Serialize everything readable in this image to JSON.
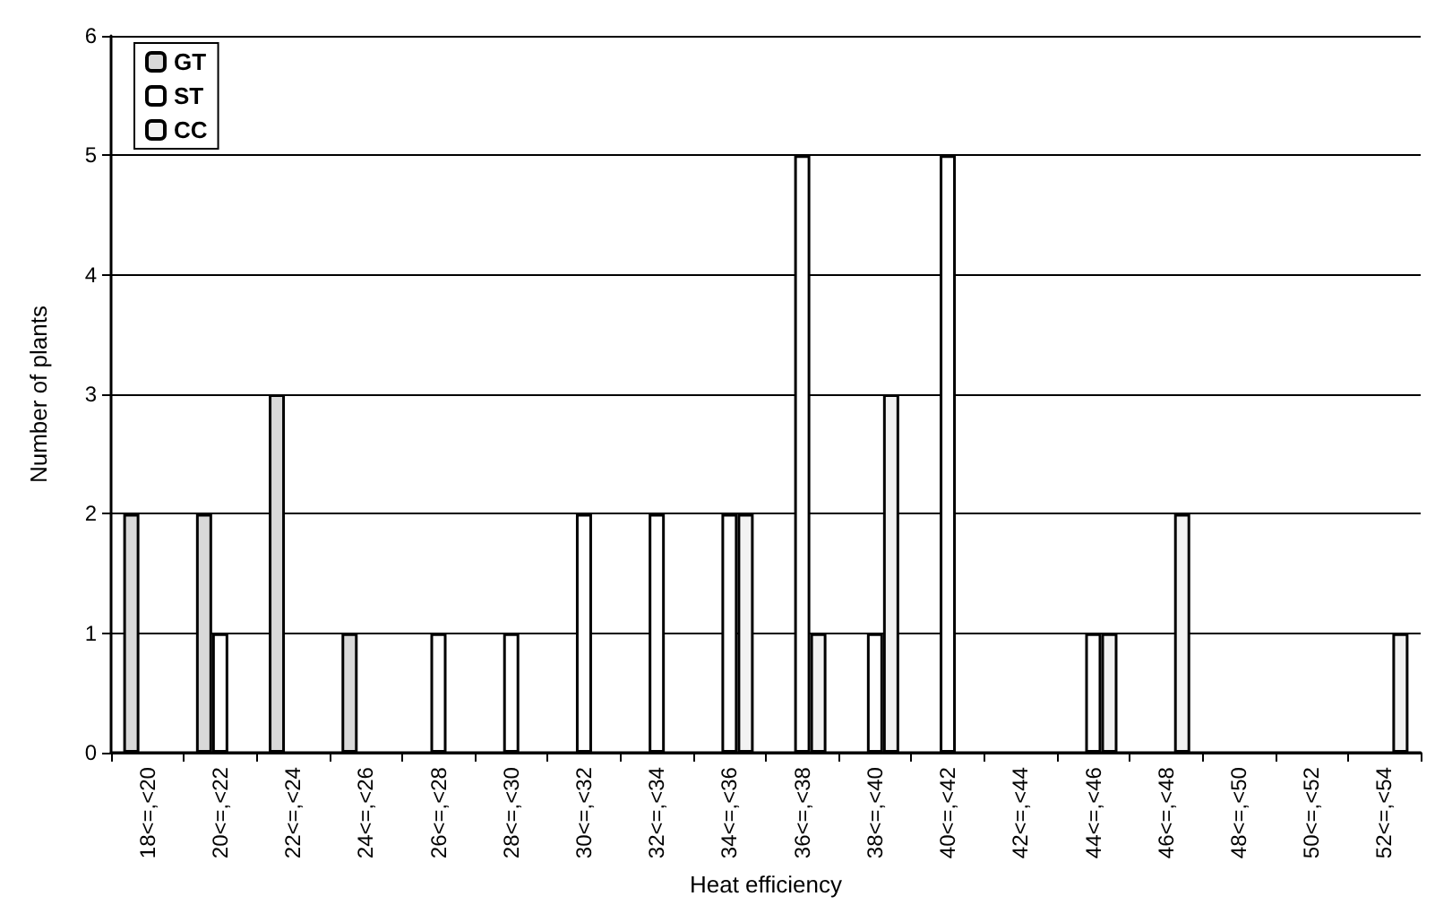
{
  "chart_data": {
    "type": "bar",
    "xlabel": "Heat efficiency",
    "ylabel": "Number of plants",
    "categories": [
      "18<=,<20",
      "20<=,<22",
      "22<=,<24",
      "24<=,<26",
      "26<=,<28",
      "28<=,<30",
      "30<=,<32",
      "32<=,<34",
      "34<=,<36",
      "36<=,<38",
      "38<=,<40",
      "40<=,<42",
      "42<=,<44",
      "44<=,<46",
      "46<=,<48",
      "48<=,<50",
      "50<=,<52",
      "52<=,<54"
    ],
    "series": [
      {
        "name": "GT",
        "color": "#d9d9d9",
        "values": [
          2,
          2,
          3,
          1,
          0,
          0,
          0,
          0,
          0,
          0,
          0,
          0,
          0,
          0,
          0,
          0,
          0,
          0
        ]
      },
      {
        "name": "ST",
        "color": "#ffffff",
        "values": [
          0,
          1,
          0,
          0,
          1,
          1,
          2,
          2,
          2,
          5,
          1,
          5,
          0,
          1,
          0,
          0,
          0,
          0
        ]
      },
      {
        "name": "CC",
        "color": "#f2f2f2",
        "values": [
          0,
          0,
          0,
          0,
          0,
          0,
          0,
          0,
          2,
          1,
          3,
          0,
          0,
          1,
          2,
          0,
          0,
          1
        ]
      }
    ],
    "ylim": [
      0,
      6
    ],
    "yticks": [
      0,
      1,
      2,
      3,
      4,
      5,
      6
    ],
    "grid": "y",
    "legend": "top left"
  }
}
